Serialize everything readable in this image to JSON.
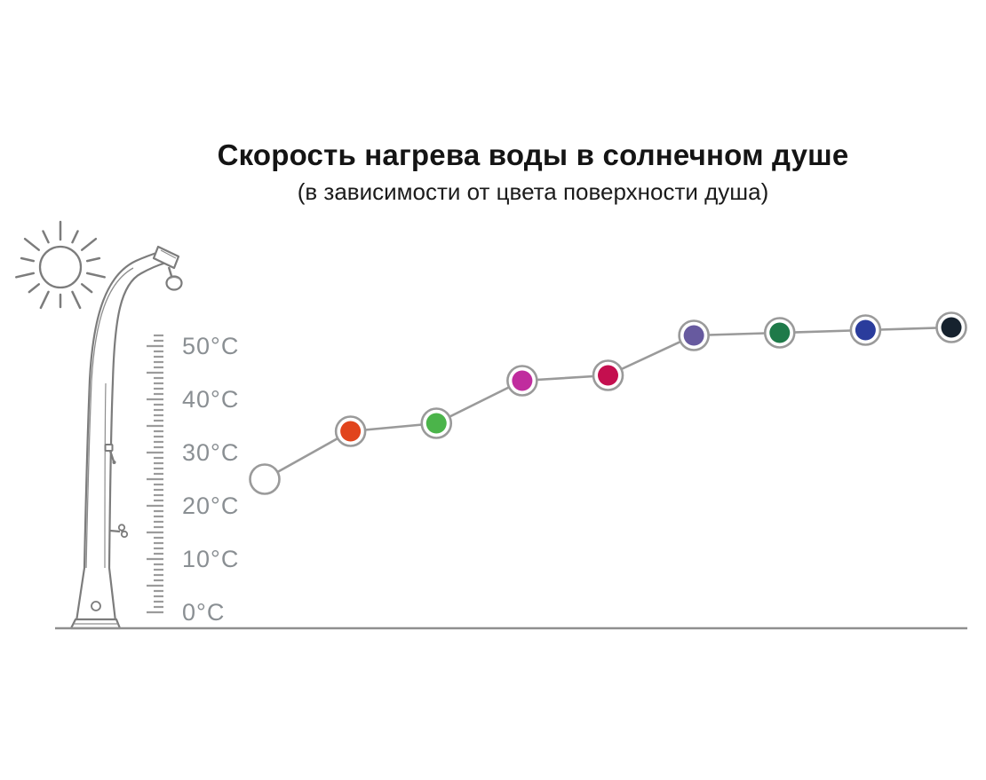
{
  "title": "Скорость нагрева воды в солнечном душе",
  "subtitle": "(в зависимости от цвета поверхности душа)",
  "illustration": {
    "sun_icon": "sun-with-rays",
    "shower_icon": "solar-shower-column",
    "ruler_icon": "temperature-ruler"
  },
  "chart_data": {
    "type": "line",
    "title": "Скорость нагрева воды в солнечном душе",
    "subtitle": "(в зависимости от цвета поверхности душа)",
    "xlabel": "",
    "ylabel": "°C",
    "ylim": [
      0,
      55
    ],
    "grid": false,
    "legend": false,
    "yticks": [
      {
        "value": 0,
        "label": "0°C"
      },
      {
        "value": 10,
        "label": "10°C"
      },
      {
        "value": 20,
        "label": "20°C"
      },
      {
        "value": 30,
        "label": "30°C"
      },
      {
        "value": 40,
        "label": "40°C"
      },
      {
        "value": 50,
        "label": "50°C"
      }
    ],
    "ruler": {
      "min": 0,
      "max": 52,
      "minor_step": 1,
      "major_step": 5
    },
    "line_color": "#9a9a9a",
    "marker_ring_color": "#9a9a9a",
    "series": [
      {
        "points": [
          {
            "surface_color": "white",
            "hex": "#ffffff",
            "temp_c": 25
          },
          {
            "surface_color": "orange-red",
            "hex": "#e1441c",
            "temp_c": 34
          },
          {
            "surface_color": "green",
            "hex": "#4bb44a",
            "temp_c": 35.5
          },
          {
            "surface_color": "magenta",
            "hex": "#c02c9e",
            "temp_c": 43.5
          },
          {
            "surface_color": "crimson",
            "hex": "#c40f4f",
            "temp_c": 44.5
          },
          {
            "surface_color": "violet",
            "hex": "#675a9f",
            "temp_c": 52
          },
          {
            "surface_color": "dark-green",
            "hex": "#1e7a49",
            "temp_c": 52.5
          },
          {
            "surface_color": "royal-blue",
            "hex": "#2a3c9c",
            "temp_c": 53
          },
          {
            "surface_color": "black-navy",
            "hex": "#16222e",
            "temp_c": 53.5
          }
        ]
      }
    ]
  },
  "colors": {
    "title_text": "#141414",
    "scale_text": "#8a8f93",
    "line_art": "#7c7c7c",
    "ground_line": "#8f8f8f"
  }
}
